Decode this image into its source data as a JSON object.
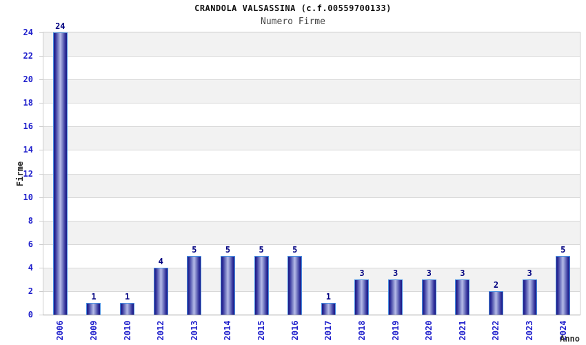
{
  "header": {
    "title": "CRANDOLA VALSASSINA (c.f.00559700133)",
    "subtitle": "Numero Firme"
  },
  "chart_data": {
    "type": "bar",
    "title": "CRANDOLA VALSASSINA (c.f.00559700133)",
    "subtitle": "Numero Firme",
    "categories": [
      "2006",
      "2009",
      "2010",
      "2012",
      "2013",
      "2014",
      "2015",
      "2016",
      "2017",
      "2018",
      "2019",
      "2020",
      "2021",
      "2022",
      "2023",
      "2024"
    ],
    "values": [
      24,
      1,
      1,
      4,
      5,
      5,
      5,
      5,
      1,
      3,
      3,
      3,
      3,
      2,
      3,
      5
    ],
    "xlabel": "Anno",
    "ylabel": "Firme",
    "ylim": [
      0,
      24
    ],
    "ytick_step": 2,
    "grid": true,
    "legend": "none",
    "colors": {
      "bar_edge": "#1a1a86",
      "bar_shade": "#30309a",
      "bar_mid": "#8b91cf",
      "bar_highlight": "#b6bbe8",
      "bar_outline": "#4a90e2",
      "tick_label": "#2020cc",
      "value_label": "#000080",
      "band_gray": "#f2f2f2",
      "band_white": "#ffffff",
      "gridline": "#d8d8d8",
      "axis_border": "#cccccc",
      "axis_bottom": "#999999"
    }
  }
}
